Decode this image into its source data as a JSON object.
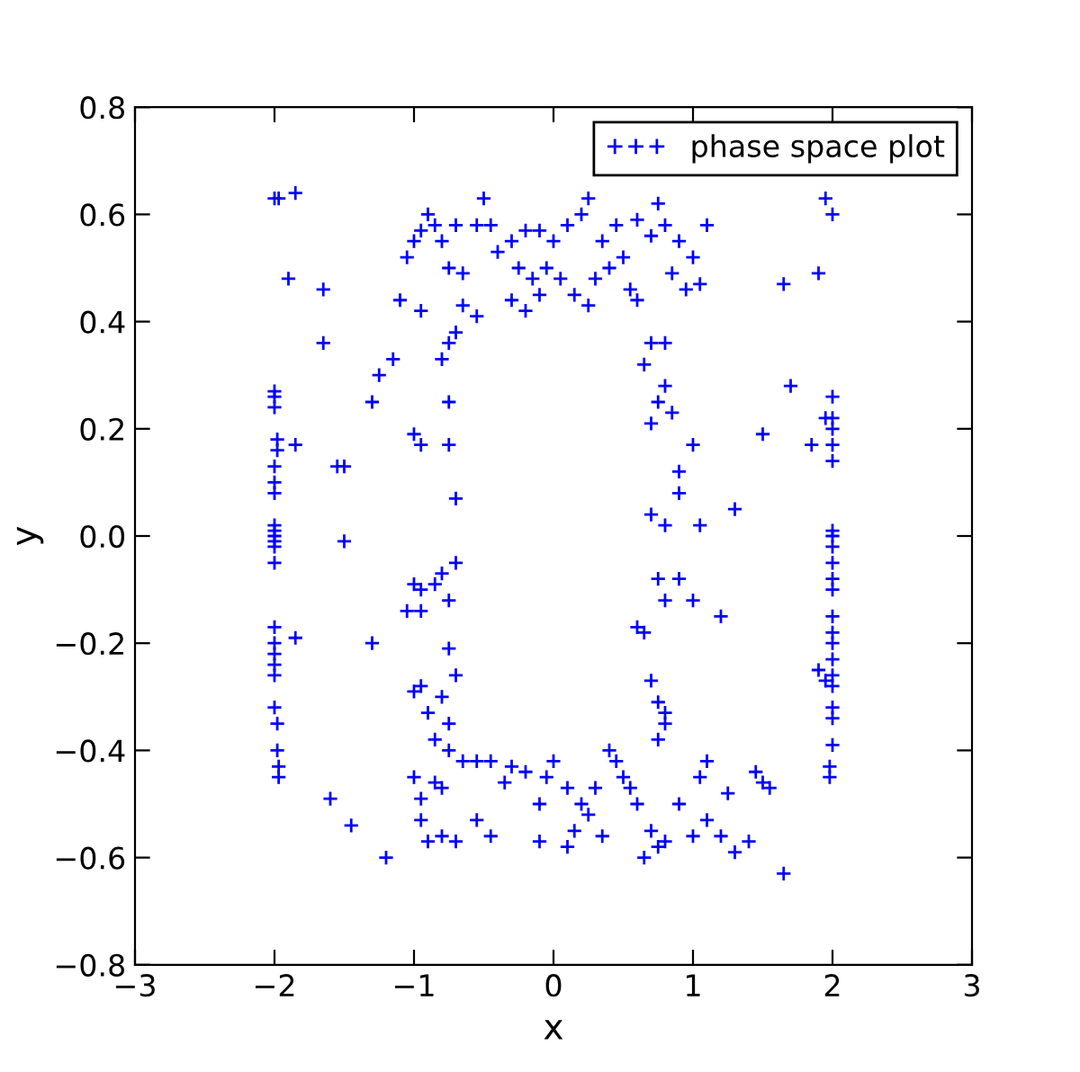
{
  "chart_data": {
    "type": "scatter",
    "xlabel": "x",
    "ylabel": "y",
    "xlim": [
      -3,
      3
    ],
    "xticks": [
      {
        "value": -3,
        "label": "−3"
      },
      {
        "value": -2,
        "label": "−2"
      },
      {
        "value": -1,
        "label": "−1"
      },
      0,
      1,
      2,
      3
    ],
    "ylim": [
      -0.8,
      0.8
    ],
    "yticks": [
      {
        "value": -0.8,
        "label": "−0.8"
      },
      {
        "value": -0.6,
        "label": "−0.6"
      },
      {
        "value": -0.4,
        "label": "−0.4"
      },
      {
        "value": -0.2,
        "label": "−0.2"
      },
      {
        "value": 0.0,
        "label": "0.0"
      },
      {
        "value": 0.2,
        "label": "0.2"
      },
      {
        "value": 0.4,
        "label": "0.4"
      },
      {
        "value": 0.6,
        "label": "0.6"
      },
      {
        "value": 0.8,
        "label": "0.8"
      }
    ],
    "grid": false,
    "legend": "top right",
    "marker": "cross",
    "series": [
      {
        "name": "phase space plot",
        "color": "#0000ff",
        "x": [
          -2,
          -1.97,
          -1.85,
          -1.9,
          -2,
          -2,
          -2,
          -1.98,
          -1.98,
          -2,
          -2,
          -2,
          -2,
          -2,
          -2,
          -2,
          -2,
          -2,
          -2,
          -2,
          -2,
          -2,
          -2,
          -2,
          -1.98,
          -1.98,
          -1.97,
          -1.97,
          -1.85,
          -1.85,
          -1.65,
          -1.65,
          -1.55,
          -1.5,
          -1.5,
          -1.6,
          -1.45,
          -1.3,
          -1.3,
          -1.25,
          -1.2,
          -1.15,
          -1.1,
          -1.05,
          -1.0,
          -0.95,
          -0.9,
          -0.85,
          -0.8,
          -0.75,
          -0.7,
          -0.65,
          -0.5,
          -0.55,
          -0.45,
          -0.55,
          -0.75,
          -0.7,
          -0.65,
          -0.8,
          -0.95,
          -1.0,
          -0.95,
          -0.75,
          -0.75,
          -0.7,
          -1.0,
          -0.95,
          -0.85,
          -0.8,
          -0.7,
          -0.75,
          -0.95,
          -1.05,
          -1.0,
          -0.95,
          -0.8,
          -0.9,
          -0.85,
          -0.75,
          -0.75,
          -0.7,
          -0.75,
          -0.65,
          -0.55,
          -0.45,
          -1.0,
          -0.85,
          -0.95,
          -0.8,
          -0.95,
          -0.9,
          -0.8,
          -0.7,
          -0.55,
          -0.45,
          -0.35,
          -0.3,
          -0.2,
          -0.1,
          -0.05,
          0.0,
          0.1,
          0.2,
          0.25,
          0.3,
          0.1,
          -0.1,
          0.15,
          0.35,
          0.4,
          0.45,
          0.5,
          0.55,
          0.6,
          0.7,
          0.75,
          0.65,
          0.8,
          0.9,
          1.0,
          1.1,
          1.2,
          1.3,
          1.4,
          1.25,
          1.5,
          1.55,
          1.45,
          1.65,
          1.05,
          1.1,
          0.75,
          0.8,
          0.8,
          0.75,
          0.7,
          0.65,
          0.6,
          0.75,
          0.8,
          0.9,
          1.0,
          0.8,
          0.7,
          0.9,
          1.05,
          1.2,
          1.3,
          0.7,
          0.8,
          0.85,
          0.75,
          1.0,
          0.9,
          0.65,
          0.7,
          0.8,
          1.5,
          1.7,
          1.65,
          1.9,
          1.95,
          2.0,
          1.85,
          1.95,
          2,
          2,
          2,
          2,
          2,
          2,
          2,
          2,
          2,
          2,
          2,
          2,
          2,
          2,
          2,
          2,
          2,
          2,
          2,
          2,
          1.98,
          1.98,
          1.9,
          1.95,
          0.0,
          0.1,
          0.2,
          0.25,
          0.35,
          0.4,
          0.45,
          0.5,
          0.6,
          0.7,
          0.75,
          0.8,
          0.9,
          1.0,
          1.1,
          0.95,
          1.05,
          0.85,
          -0.3,
          -0.2,
          -0.1,
          -0.25,
          -0.15,
          0.05,
          0.15,
          0.25,
          -0.3,
          -0.2,
          -0.1,
          0.3,
          0.55,
          -0.05,
          -0.4,
          0.6
        ],
        "values": [
          0.63,
          0.63,
          0.64,
          0.48,
          0.27,
          0.26,
          0.24,
          0.18,
          0.16,
          0.13,
          0.1,
          0.08,
          0.02,
          0.01,
          0.0,
          -0.01,
          -0.02,
          -0.05,
          -0.17,
          -0.2,
          -0.22,
          -0.24,
          -0.26,
          -0.32,
          -0.35,
          -0.4,
          -0.43,
          -0.45,
          0.17,
          -0.19,
          0.46,
          0.36,
          0.13,
          0.13,
          -0.01,
          -0.49,
          -0.54,
          -0.2,
          0.25,
          0.3,
          -0.6,
          0.33,
          0.44,
          0.52,
          0.55,
          0.57,
          0.6,
          0.58,
          0.55,
          0.5,
          0.58,
          0.49,
          0.63,
          0.58,
          0.58,
          0.41,
          0.36,
          0.38,
          0.43,
          0.33,
          0.42,
          0.19,
          0.17,
          0.25,
          0.17,
          0.07,
          -0.09,
          -0.1,
          -0.09,
          -0.07,
          -0.05,
          -0.12,
          -0.14,
          -0.14,
          -0.29,
          -0.28,
          -0.3,
          -0.33,
          -0.38,
          -0.35,
          -0.21,
          -0.26,
          -0.4,
          -0.42,
          -0.42,
          -0.42,
          -0.45,
          -0.46,
          -0.49,
          -0.47,
          -0.53,
          -0.57,
          -0.56,
          -0.57,
          -0.53,
          -0.56,
          -0.46,
          -0.43,
          -0.44,
          -0.5,
          -0.45,
          -0.42,
          -0.47,
          -0.5,
          -0.52,
          -0.47,
          -0.58,
          -0.57,
          -0.55,
          -0.56,
          -0.4,
          -0.42,
          -0.45,
          -0.47,
          -0.5,
          -0.55,
          -0.58,
          -0.6,
          -0.57,
          -0.5,
          -0.56,
          -0.53,
          -0.56,
          -0.59,
          -0.57,
          -0.48,
          -0.46,
          -0.47,
          -0.44,
          -0.63,
          -0.45,
          -0.42,
          -0.38,
          -0.35,
          -0.33,
          -0.31,
          -0.27,
          -0.18,
          -0.17,
          -0.08,
          -0.12,
          -0.08,
          -0.12,
          0.02,
          0.04,
          0.08,
          0.02,
          -0.15,
          0.05,
          0.21,
          0.28,
          0.23,
          0.25,
          0.17,
          0.12,
          0.32,
          0.36,
          0.36,
          0.19,
          0.28,
          0.47,
          0.49,
          0.63,
          0.6,
          0.17,
          0.22,
          0.26,
          0.22,
          0.2,
          0.17,
          0.14,
          0.01,
          0.0,
          -0.02,
          -0.05,
          -0.08,
          -0.1,
          -0.15,
          -0.18,
          -0.2,
          -0.23,
          -0.26,
          -0.28,
          -0.32,
          -0.34,
          -0.39,
          -0.43,
          -0.45,
          -0.25,
          -0.27,
          0.55,
          0.58,
          0.6,
          0.63,
          0.55,
          0.5,
          0.58,
          0.52,
          0.59,
          0.56,
          0.62,
          0.58,
          0.55,
          0.52,
          0.58,
          0.46,
          0.47,
          0.49,
          0.55,
          0.57,
          0.57,
          0.5,
          0.48,
          0.48,
          0.45,
          0.43,
          0.44,
          0.42,
          0.45,
          0.48,
          0.46,
          0.5,
          0.53,
          0.44
        ]
      }
    ]
  }
}
